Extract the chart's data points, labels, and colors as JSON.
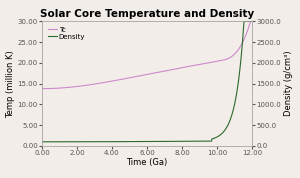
{
  "title": "Solar Core Temperature and Density",
  "xlabel": "Time (Ga)",
  "ylabel_left": "Temp (million K)",
  "ylabel_right": "Density (g/cm³)",
  "xlim": [
    0.0,
    12.0
  ],
  "ylim_left": [
    0.0,
    30.0
  ],
  "ylim_right": [
    0.0,
    3000.0
  ],
  "xticks": [
    0.0,
    2.0,
    4.0,
    6.0,
    8.0,
    10.0,
    12.0
  ],
  "yticks_left": [
    0.0,
    5.0,
    10.0,
    15.0,
    20.0,
    25.0,
    30.0
  ],
  "yticks_right": [
    0.0,
    500.0,
    1000.0,
    1500.0,
    2000.0,
    2500.0,
    3000.0
  ],
  "tc_color": "#cc88cc",
  "density_color": "#2d6a2d",
  "background_color": "#f2ede8",
  "legend_labels": [
    "Tc",
    "Density"
  ],
  "title_fontsize": 7.5,
  "label_fontsize": 6,
  "tick_fontsize": 5,
  "legend_fontsize": 5
}
